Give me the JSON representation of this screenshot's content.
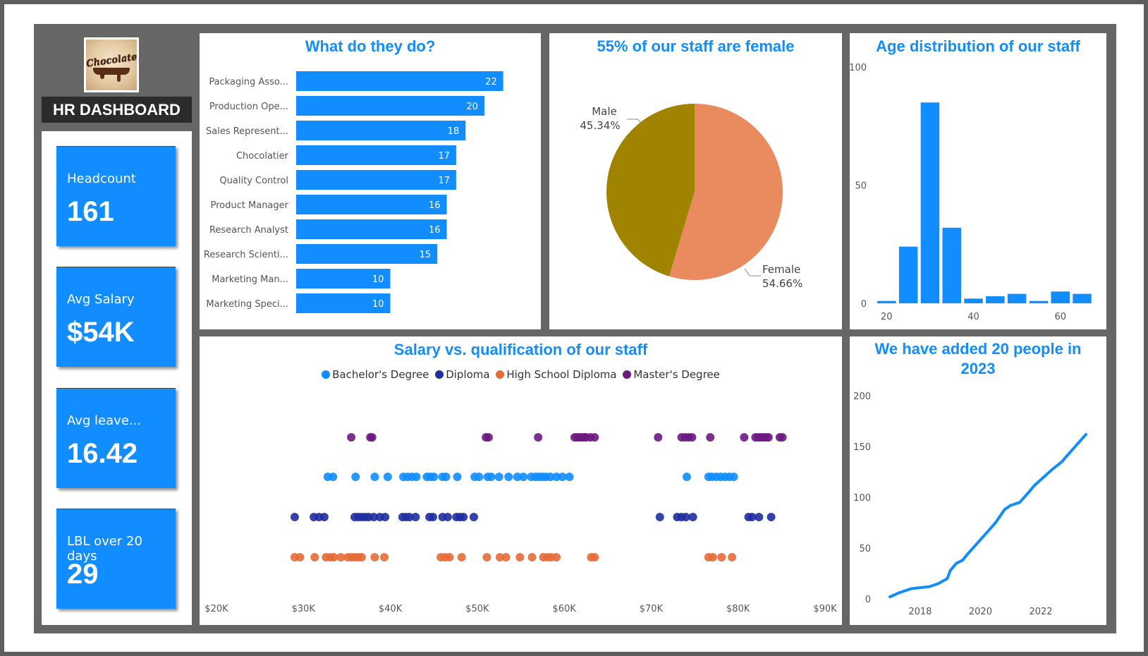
{
  "header": {
    "title": "HR DASHBOARD",
    "logo_text": "Chocolate"
  },
  "kpis": [
    {
      "label": "Headcount",
      "value": "161"
    },
    {
      "label": "Avg Salary",
      "value": "$54K"
    },
    {
      "label": "Avg leave...",
      "value": "16.42"
    },
    {
      "label": "LBL over 20 days",
      "value": "29"
    }
  ],
  "colors": {
    "accent": "#118dff",
    "female": "#e98b5f",
    "male": "#a08400",
    "bachelor": "#118dff",
    "diploma": "#1f2ea0",
    "high_school": "#e66c37",
    "master": "#6b1a82"
  },
  "panels": {
    "roles": {
      "title": "What do they do?"
    },
    "gender": {
      "title": "55% of our staff are female"
    },
    "age": {
      "title": "Age distribution of our staff"
    },
    "salary": {
      "title": "Salary vs. qualification of our staff"
    },
    "growth": {
      "title": "We have added 20 people in 2023"
    }
  },
  "chart_data": [
    {
      "type": "bar",
      "orientation": "horizontal",
      "title": "What do they do?",
      "categories": [
        "Packaging Asso...",
        "Production Ope...",
        "Sales Represent...",
        "Chocolatier",
        "Quality Control",
        "Product Manager",
        "Research Analyst",
        "Research Scienti...",
        "Marketing Man...",
        "Marketing Speci..."
      ],
      "values": [
        22,
        20,
        18,
        17,
        17,
        16,
        16,
        15,
        10,
        10
      ],
      "xlim": [
        0,
        26
      ],
      "data_labels": true,
      "grid": false
    },
    {
      "type": "pie",
      "title": "55% of our staff are female",
      "slices": [
        {
          "label": "Female",
          "value": 54.66,
          "display": "54.66%"
        },
        {
          "label": "Male",
          "value": 45.34,
          "display": "45.34%"
        }
      ]
    },
    {
      "type": "bar",
      "title": "Age distribution of our staff",
      "x": [
        20,
        25,
        30,
        35,
        40,
        45,
        50,
        55,
        60,
        65
      ],
      "values": [
        1,
        24,
        85,
        32,
        2,
        3,
        4,
        1,
        5,
        4
      ],
      "xticks": [
        20,
        40,
        60
      ],
      "yticks": [
        0,
        50,
        100
      ],
      "ylim": [
        0,
        100
      ],
      "xlim": [
        18,
        68
      ],
      "grid": false
    },
    {
      "type": "scatter",
      "title": "Salary vs. qualification of our staff",
      "xticks": [
        "$20K",
        "$30K",
        "$40K",
        "$50K",
        "$60K",
        "$70K",
        "$80K",
        "$90K"
      ],
      "xlim": [
        20000,
        90000
      ],
      "legend": "top-center",
      "series": [
        {
          "name": "Master's Degree",
          "x": [
            35500,
            37700,
            37900,
            51000,
            51300,
            57000,
            61200,
            61500,
            61700,
            62000,
            62300,
            62500,
            63000,
            63500,
            70800,
            73500,
            73900,
            74300,
            74700,
            76800,
            80700,
            82000,
            82300,
            82600,
            82900,
            83200,
            83500,
            84800,
            85100
          ]
        },
        {
          "name": "Bachelor's Degree",
          "x": [
            32800,
            33400,
            36000,
            38200,
            39700,
            41500,
            42000,
            42500,
            43000,
            44200,
            44600,
            45000,
            46000,
            46400,
            47700,
            49700,
            50200,
            51200,
            51600,
            52500,
            53600,
            54600,
            55300,
            56200,
            56700,
            57100,
            57500,
            57900,
            58400,
            59100,
            59800,
            60600,
            74100,
            76600,
            77000,
            77500,
            78000,
            78500,
            79000,
            79500
          ]
        },
        {
          "name": "Diploma",
          "x": [
            29000,
            31200,
            31800,
            32400,
            35900,
            36300,
            36700,
            37100,
            37500,
            38100,
            38800,
            39400,
            41400,
            41800,
            42200,
            42900,
            44500,
            44900,
            46000,
            46600,
            47600,
            48000,
            48400,
            49600,
            71000,
            73000,
            73500,
            74000,
            74800,
            81200,
            81600,
            82400,
            83800
          ]
        },
        {
          "name": "High School Diploma",
          "x": [
            29000,
            29600,
            31300,
            32600,
            33100,
            33500,
            34300,
            35100,
            35500,
            35900,
            36300,
            36700,
            38200,
            39300,
            45800,
            46300,
            46800,
            48200,
            51100,
            52600,
            53300,
            54900,
            56300,
            57600,
            58100,
            58500,
            59100,
            63100,
            63500,
            76600,
            77100,
            78100,
            79300
          ]
        }
      ]
    },
    {
      "type": "line",
      "title": "We have added 20 people in 2023",
      "xticks": [
        2018,
        2020,
        2022
      ],
      "yticks": [
        0,
        50,
        100,
        150,
        200
      ],
      "ylim": [
        0,
        200
      ],
      "xlim": [
        2016.6,
        2023.8
      ],
      "x": [
        2017.0,
        2017.3,
        2017.5,
        2017.7,
        2018.0,
        2018.3,
        2018.6,
        2018.9,
        2019.0,
        2019.2,
        2019.4,
        2019.6,
        2019.9,
        2020.2,
        2020.5,
        2020.8,
        2021.0,
        2021.3,
        2021.6,
        2021.8,
        2022.1,
        2022.4,
        2022.7,
        2022.9,
        2023.2,
        2023.5
      ],
      "y": [
        2,
        6,
        8,
        10,
        11,
        12,
        15,
        20,
        28,
        35,
        38,
        45,
        55,
        65,
        75,
        88,
        92,
        95,
        105,
        112,
        120,
        128,
        135,
        142,
        152,
        162
      ]
    }
  ]
}
